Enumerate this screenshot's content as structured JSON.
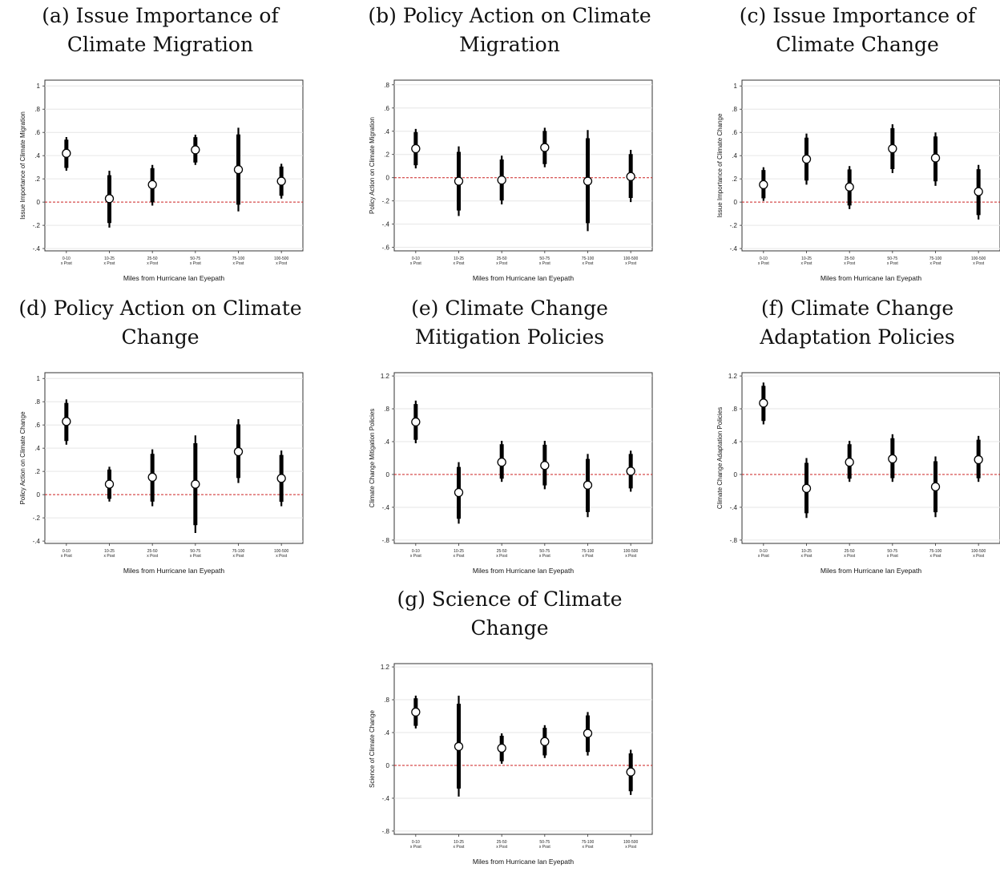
{
  "chart_data": [
    {
      "type": "scatter",
      "title": "(a) Issue Importance of Climate Migration",
      "xlabel": "Miles from Hurricane Ian Eyepath",
      "ylabel": "Issue Importance of Climate Migration",
      "categories": [
        "0-10 x Post",
        "10-25 x Post",
        "25-50 x Post",
        "50-75 x Post",
        "75-100 x Post",
        "100-500 x Post"
      ],
      "estimate": [
        0.42,
        0.03,
        0.15,
        0.45,
        0.28,
        0.18
      ],
      "ci_high": [
        0.56,
        0.27,
        0.32,
        0.58,
        0.64,
        0.33
      ],
      "ci_low": [
        0.27,
        -0.22,
        -0.03,
        0.32,
        -0.08,
        0.03
      ],
      "yticks": [
        "1",
        ".8",
        ".6",
        ".4",
        ".2",
        "0",
        "-.2",
        "-.4"
      ],
      "ylim": [
        -0.42,
        1.05
      ]
    },
    {
      "type": "scatter",
      "title": "(b) Policy Action on Climate Migration",
      "xlabel": "Miles from Hurricane Ian Eyepath",
      "ylabel": "Policy Action on Climate Migration",
      "categories": [
        "0-10 x Post",
        "10-25 x Post",
        "25-50 x Post",
        "50-75 x Post",
        "75-100 x Post",
        "100-500 x Post"
      ],
      "estimate": [
        0.25,
        -0.03,
        -0.02,
        0.26,
        -0.03,
        0.01
      ],
      "ci_high": [
        0.42,
        0.27,
        0.19,
        0.43,
        0.41,
        0.24
      ],
      "ci_low": [
        0.08,
        -0.33,
        -0.23,
        0.09,
        -0.46,
        -0.21
      ],
      "yticks": [
        ".8",
        ".6",
        ".4",
        ".2",
        "0",
        "-.2",
        "-.4",
        "-.6"
      ],
      "ylim": [
        -0.63,
        0.84
      ]
    },
    {
      "type": "scatter",
      "title": "(c) Issue Importance of Climate Change",
      "xlabel": "Miles from Hurricane Ian Eyepath",
      "ylabel": "Issue Importance of Climate Change",
      "categories": [
        "0-10 x Post",
        "10-25 x Post",
        "25-50 x Post",
        "50-75 x Post",
        "75-100 x Post",
        "100-500 x Post"
      ],
      "estimate": [
        0.15,
        0.37,
        0.13,
        0.46,
        0.38,
        0.09
      ],
      "ci_high": [
        0.3,
        0.59,
        0.31,
        0.67,
        0.6,
        0.32
      ],
      "ci_low": [
        0.01,
        0.15,
        -0.06,
        0.25,
        0.14,
        -0.15
      ],
      "yticks": [
        "1",
        ".8",
        ".6",
        ".4",
        ".2",
        "0",
        "-.2",
        "-.4"
      ],
      "ylim": [
        -0.42,
        1.05
      ]
    },
    {
      "type": "scatter",
      "title": "(d) Policy Action on Climate Change",
      "xlabel": "Miles from Hurricane Ian Eyepath",
      "ylabel": "Policy Action on Climate Change",
      "categories": [
        "0-10 x Post",
        "10-25 x Post",
        "25-50 x Post",
        "50-75 x Post",
        "75-100 x Post",
        "100-500 x Post"
      ],
      "estimate": [
        0.63,
        0.09,
        0.15,
        0.09,
        0.37,
        0.14
      ],
      "ci_high": [
        0.82,
        0.24,
        0.39,
        0.51,
        0.65,
        0.38
      ],
      "ci_low": [
        0.43,
        -0.06,
        -0.1,
        -0.33,
        0.1,
        -0.1
      ],
      "yticks": [
        "1",
        ".8",
        ".6",
        ".4",
        ".2",
        "0",
        "-.2",
        "-.4"
      ],
      "ylim": [
        -0.42,
        1.05
      ]
    },
    {
      "type": "scatter",
      "title": "(e) Climate Change Mitigation Policies",
      "xlabel": "Miles from Hurricane Ian Eyepath",
      "ylabel": "Climate Change Mitigation Policies",
      "categories": [
        "0-10 x Post",
        "10-25 x Post",
        "25-50 x Post",
        "50-75 x Post",
        "75-100 x Post",
        "100-500 x Post"
      ],
      "estimate": [
        0.64,
        -0.22,
        0.15,
        0.11,
        -0.13,
        0.04
      ],
      "ci_high": [
        0.9,
        0.15,
        0.41,
        0.41,
        0.25,
        0.29
      ],
      "ci_low": [
        0.38,
        -0.6,
        -0.09,
        -0.18,
        -0.52,
        -0.21
      ],
      "yticks": [
        "1.2",
        ".8",
        ".4",
        "0",
        "-.4",
        "-.8"
      ],
      "ylim": [
        -0.84,
        1.24
      ]
    },
    {
      "type": "scatter",
      "title": "(f) Climate Change Adaptation Policies",
      "xlabel": "Miles from Hurricane Ian Eyepath",
      "ylabel": "Climate Change Adaptation Policies",
      "categories": [
        "0-10 x Post",
        "10-25 x Post",
        "25-50 x Post",
        "50-75 x Post",
        "75-100 x Post",
        "100-500 x Post"
      ],
      "estimate": [
        0.87,
        -0.17,
        0.15,
        0.19,
        -0.15,
        0.18
      ],
      "ci_high": [
        1.12,
        0.2,
        0.41,
        0.49,
        0.22,
        0.47
      ],
      "ci_low": [
        0.61,
        -0.53,
        -0.09,
        -0.09,
        -0.52,
        -0.09
      ],
      "yticks": [
        "1.2",
        ".8",
        ".4",
        "0",
        "-.4",
        "-.8"
      ],
      "ylim": [
        -0.84,
        1.24
      ]
    },
    {
      "type": "scatter",
      "title": "(g) Science of Climate Change",
      "xlabel": "Miles from Hurricane Ian Eyepath",
      "ylabel": "Science of Climate Change",
      "categories": [
        "0-10 x Post",
        "10-25 x Post",
        "25-50 x Post",
        "50-75 x Post",
        "75-100 x Post",
        "100-500 x Post"
      ],
      "estimate": [
        0.65,
        0.23,
        0.21,
        0.29,
        0.39,
        -0.08
      ],
      "ci_high": [
        0.85,
        0.85,
        0.39,
        0.49,
        0.65,
        0.19
      ],
      "ci_low": [
        0.45,
        -0.38,
        0.02,
        0.09,
        0.12,
        -0.36
      ],
      "yticks": [
        "1.2",
        ".8",
        ".4",
        "0",
        "-.4",
        "-.8"
      ],
      "ylim": [
        -0.84,
        1.24
      ]
    }
  ]
}
